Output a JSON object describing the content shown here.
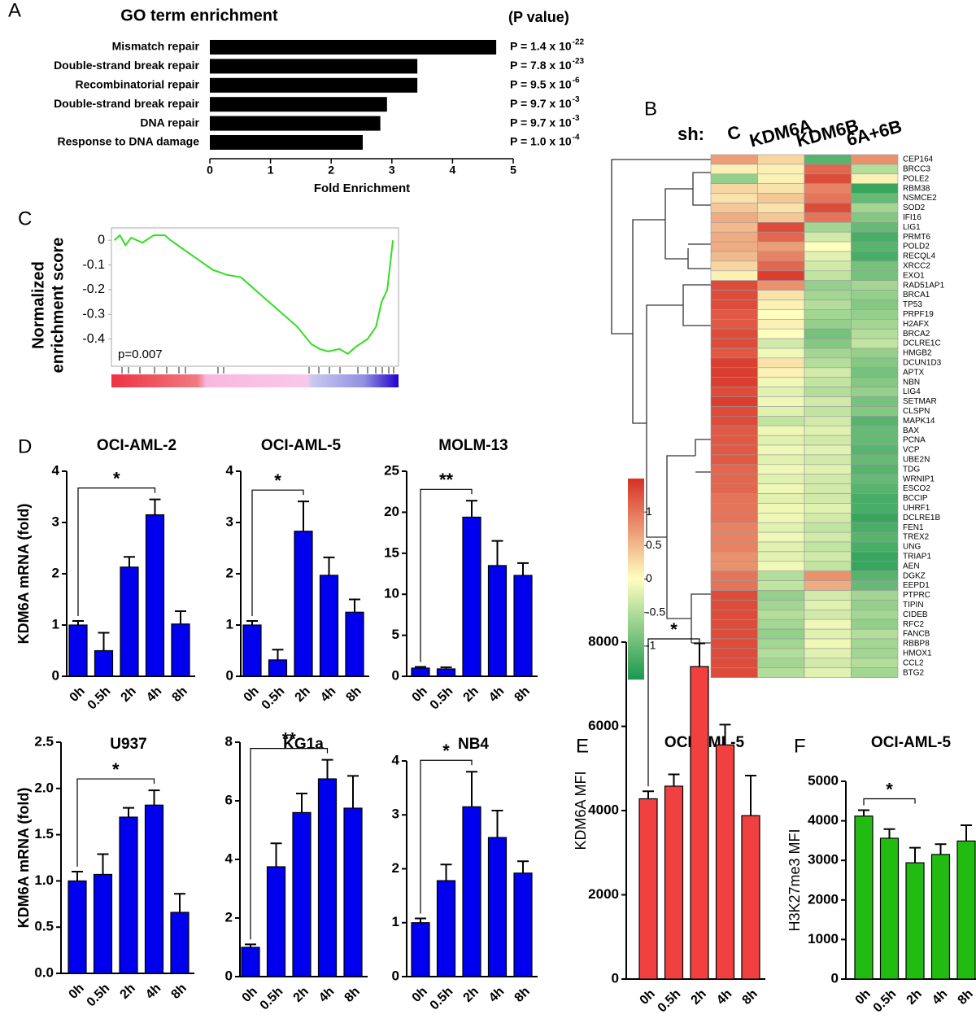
{
  "chart_data": [
    {
      "type": "barh",
      "panel": "A",
      "title": "GO term enrichment",
      "value_header": "(P value)",
      "xlabel": "Fold Enrichment",
      "categories": [
        "Mismatch repair",
        "Double-strand break repair",
        "Recombinatorial repair",
        "Double-strand break repair",
        "DNA repair",
        "Response to DNA damage"
      ],
      "values": [
        4.72,
        3.42,
        3.42,
        2.92,
        2.81,
        2.52
      ],
      "value_labels": [
        {
          "text": "P = 1.4 x 10",
          "exp": "-22"
        },
        {
          "text": "P = 7.8 x 10",
          "exp": "-23"
        },
        {
          "text": "P = 9.5 x 10",
          "exp": "-6"
        },
        {
          "text": "P = 9.7 x 10",
          "exp": "-3"
        },
        {
          "text": "P = 9.7 x 10",
          "exp": "-3"
        },
        {
          "text": "P = 1.0 x 10",
          "exp": "-4"
        }
      ],
      "color": "#000000",
      "xlim": [
        0,
        5
      ],
      "xticks": [
        0,
        1,
        2,
        3,
        4,
        5
      ]
    },
    {
      "type": "heatmap",
      "panel": "B",
      "header": "sh:",
      "columns": [
        "C",
        "KDM6A",
        "KDM6B",
        "6A+6B"
      ],
      "rows": [
        "CEP164",
        "BRCC3",
        "POLE2",
        "RBM38",
        "NSMCE2",
        "SOD2",
        "IFI16",
        "LIG1",
        "PRMT6",
        "POLD2",
        "RECQL4",
        "XRCC2",
        "EXO1",
        "RAD51AP1",
        "BRCA1",
        "TP53",
        "PRPF19",
        "H2AFX",
        "BRCA2",
        "DCLRE1C",
        "HMGB2",
        "DCUN1D3",
        "APTX",
        "NBN",
        "LIG4",
        "SETMAR",
        "CLSPN",
        "MAPK14",
        "BAX",
        "PCNA",
        "VCP",
        "UBE2N",
        "TDG",
        "WRNIP1",
        "ESCO2",
        "BCCIP",
        "UHRF1",
        "DCLRE1B",
        "FEN1",
        "TREX2",
        "UNG",
        "TRIAP1",
        "AEN",
        "DGKZ",
        "EEPD1",
        "PTPRC",
        "TIPIN",
        "CIDEB",
        "RFC2",
        "FANCB",
        "RBBP8",
        "HMOX1",
        "CCL2",
        "BTG2"
      ],
      "values": [
        [
          0.7,
          0.3,
          -1.1,
          0.8
        ],
        [
          0.1,
          0.1,
          1.1,
          -0.5
        ],
        [
          -0.7,
          0.1,
          1.3,
          0.1
        ],
        [
          0.3,
          0.2,
          0.9,
          -1.3
        ],
        [
          0.2,
          0.4,
          1.0,
          -1.0
        ],
        [
          0.4,
          0.2,
          1.3,
          -0.6
        ],
        [
          0.6,
          0.4,
          1.0,
          -0.8
        ],
        [
          0.5,
          1.3,
          -0.6,
          -1.0
        ],
        [
          0.6,
          1.1,
          -0.3,
          -1.2
        ],
        [
          0.6,
          0.7,
          0.0,
          -1.1
        ],
        [
          0.5,
          0.9,
          -0.2,
          -1.2
        ],
        [
          0.3,
          1.1,
          -0.3,
          -0.9
        ],
        [
          0.1,
          1.4,
          -0.4,
          -0.9
        ],
        [
          1.3,
          0.8,
          -0.7,
          -0.6
        ],
        [
          1.3,
          0.2,
          -0.6,
          -0.7
        ],
        [
          1.3,
          0.1,
          -0.5,
          -0.8
        ],
        [
          1.2,
          0.0,
          -0.6,
          -0.7
        ],
        [
          1.2,
          0.1,
          -0.7,
          -0.6
        ],
        [
          1.3,
          0.0,
          -0.9,
          -0.5
        ],
        [
          1.3,
          -0.3,
          -0.8,
          -0.4
        ],
        [
          1.2,
          -0.1,
          -0.6,
          -0.7
        ],
        [
          1.4,
          0.2,
          -0.5,
          -0.8
        ],
        [
          1.4,
          0.1,
          -0.3,
          -0.9
        ],
        [
          1.4,
          -0.1,
          -0.4,
          -0.8
        ],
        [
          1.3,
          -0.2,
          -0.5,
          -0.7
        ],
        [
          1.4,
          -0.1,
          -0.3,
          -0.9
        ],
        [
          1.3,
          -0.2,
          -0.4,
          -0.8
        ],
        [
          1.3,
          -0.4,
          -0.3,
          -1.1
        ],
        [
          1.2,
          -0.1,
          -0.2,
          -1.0
        ],
        [
          1.2,
          -0.2,
          -0.3,
          -1.0
        ],
        [
          1.2,
          -0.1,
          -0.2,
          -1.1
        ],
        [
          1.2,
          -0.2,
          -0.3,
          -1.0
        ],
        [
          1.1,
          -0.1,
          -0.2,
          -1.1
        ],
        [
          1.1,
          -0.2,
          -0.3,
          -1.0
        ],
        [
          1.1,
          -0.1,
          -0.3,
          -1.1
        ],
        [
          1.0,
          -0.2,
          -0.3,
          -1.2
        ],
        [
          1.0,
          -0.1,
          -0.2,
          -1.2
        ],
        [
          1.0,
          -0.1,
          -0.3,
          -1.3
        ],
        [
          0.9,
          -0.2,
          -0.4,
          -1.2
        ],
        [
          0.9,
          -0.1,
          -0.3,
          -1.1
        ],
        [
          0.9,
          -0.2,
          -0.4,
          -1.2
        ],
        [
          0.8,
          -0.2,
          -0.3,
          -1.3
        ],
        [
          0.8,
          -0.1,
          -0.4,
          -1.3
        ],
        [
          1.0,
          -0.5,
          0.8,
          -1.1
        ],
        [
          1.0,
          -0.4,
          0.6,
          -1.0
        ],
        [
          1.3,
          -0.7,
          -0.3,
          -0.6
        ],
        [
          1.3,
          -0.6,
          -0.2,
          -0.7
        ],
        [
          1.3,
          -0.5,
          -0.3,
          -0.6
        ],
        [
          1.3,
          -0.6,
          -0.1,
          -0.7
        ],
        [
          1.3,
          -0.7,
          -0.2,
          -0.5
        ],
        [
          1.3,
          -0.6,
          -0.1,
          -0.6
        ],
        [
          1.3,
          -0.5,
          -0.2,
          -0.6
        ],
        [
          1.3,
          -0.6,
          -0.3,
          -0.5
        ],
        [
          1.3,
          -0.5,
          -0.2,
          -0.6
        ]
      ],
      "clim": [
        -1.5,
        1.5
      ],
      "cticks": [
        1,
        0.5,
        0,
        -0.5,
        -1
      ]
    },
    {
      "type": "line",
      "panel": "C",
      "ylabel": [
        "Normalized",
        "enrichment score"
      ],
      "annotation": "p=0.007",
      "color": "#33dd22",
      "x": [
        0,
        2,
        4,
        6,
        10,
        14,
        18,
        20,
        35,
        40,
        45,
        55,
        65,
        70,
        73,
        76,
        80,
        83,
        86,
        90,
        93,
        95,
        97,
        98,
        99
      ],
      "values": [
        0,
        0.02,
        -0.02,
        0.01,
        -0.01,
        0.02,
        0.02,
        0,
        -0.12,
        -0.14,
        -0.15,
        -0.25,
        -0.35,
        -0.42,
        -0.44,
        -0.45,
        -0.44,
        -0.46,
        -0.43,
        -0.4,
        -0.35,
        -0.25,
        -0.2,
        -0.1,
        0
      ],
      "xlim": [
        -1,
        101
      ],
      "ylim": [
        -0.51,
        0.05
      ],
      "yticks": [
        0,
        -0.1,
        -0.2,
        -0.3,
        -0.4
      ]
    },
    {
      "type": "bar",
      "panel": "D",
      "title": "OCI-AML-2",
      "ylabel": "KDM6A mRNA (fold)",
      "categories": [
        "0h",
        "0.5h",
        "2h",
        "4h",
        "8h"
      ],
      "values": [
        1.0,
        0.5,
        2.13,
        3.15,
        1.02
      ],
      "errors": [
        0.08,
        0.35,
        0.2,
        0.3,
        0.25
      ],
      "color": "#0000ee",
      "ylim": [
        0,
        4
      ],
      "yticks": [
        0,
        1,
        2,
        3,
        4
      ],
      "significance": {
        "from": 0,
        "to": 3,
        "label": "*"
      }
    },
    {
      "type": "bar",
      "title": "OCI-AML-5",
      "categories": [
        "0h",
        "0.5h",
        "2h",
        "4h",
        "8h"
      ],
      "values": [
        1.0,
        0.32,
        2.83,
        1.97,
        1.25
      ],
      "errors": [
        0.08,
        0.2,
        0.58,
        0.35,
        0.25
      ],
      "color": "#0000ee",
      "ylim": [
        0,
        4
      ],
      "yticks": [
        0,
        1,
        2,
        3,
        4
      ],
      "significance": {
        "from": 0,
        "to": 2,
        "label": "*"
      }
    },
    {
      "type": "bar",
      "title": "MOLM-13",
      "categories": [
        "0h",
        "0.5h",
        "2h",
        "4h",
        "8h"
      ],
      "values": [
        1.0,
        0.9,
        19.4,
        13.5,
        12.3
      ],
      "errors": [
        0.15,
        0.2,
        2,
        3,
        1.5
      ],
      "color": "#0000ee",
      "ylim": [
        0,
        25
      ],
      "yticks": [
        0,
        5,
        10,
        15,
        20,
        25
      ],
      "significance": {
        "from": 0,
        "to": 2,
        "label": "**"
      }
    },
    {
      "type": "bar",
      "title": "U937",
      "ylabel": "KDM6A mRNA (fold)",
      "categories": [
        "0h",
        "0.5h",
        "2h",
        "4h",
        "8h"
      ],
      "values": [
        1.0,
        1.07,
        1.69,
        1.82,
        0.66
      ],
      "errors": [
        0.1,
        0.22,
        0.1,
        0.16,
        0.2
      ],
      "color": "#0000ee",
      "ylim": [
        0,
        2.5
      ],
      "yticks": [
        {
          "value": 0,
          "label": "0.0"
        },
        0.5,
        {
          "value": 1,
          "label": "1.0"
        },
        1.5,
        {
          "value": 2,
          "label": "2.0"
        },
        2.5
      ],
      "significance": {
        "from": 0,
        "to": 3,
        "label": "*"
      }
    },
    {
      "type": "bar",
      "title": "KG1a",
      "categories": [
        "0h",
        "0.5h",
        "2h",
        "4h",
        "8h"
      ],
      "values": [
        1.0,
        3.75,
        5.6,
        6.75,
        5.75
      ],
      "errors": [
        0.1,
        0.8,
        0.65,
        0.65,
        1.1
      ],
      "color": "#0000ee",
      "ylim": [
        0,
        8
      ],
      "yticks": [
        0,
        2,
        4,
        6,
        8
      ],
      "significance": {
        "from": 0,
        "to": 3,
        "label": "**"
      }
    },
    {
      "type": "bar",
      "title": "NB4",
      "categories": [
        "0h",
        "0.5h",
        "2h",
        "4h",
        "8h"
      ],
      "values": [
        1.0,
        1.78,
        3.15,
        2.58,
        1.92
      ],
      "errors": [
        0.08,
        0.3,
        0.65,
        0.5,
        0.22
      ],
      "color": "#0000ee",
      "ylim": [
        0,
        4
      ],
      "yticks": [
        0,
        1,
        2,
        3,
        4
      ],
      "significance": {
        "from": 0,
        "to": 2,
        "label": "*"
      }
    },
    {
      "type": "bar",
      "panel": "E",
      "title": "OCI-AML-5",
      "ylabel": "KDM6A MFI",
      "categories": [
        "0h",
        "0.5h",
        "2h",
        "4h",
        "8h"
      ],
      "values": [
        4280,
        4580,
        7420,
        5560,
        3880
      ],
      "errors": [
        180,
        280,
        550,
        480,
        950
      ],
      "color": "#f04040",
      "ylim": [
        0,
        8000
      ],
      "yticks": [
        0,
        2000,
        4000,
        6000,
        8000
      ],
      "significance": {
        "from": 0,
        "to": 2,
        "label": "*"
      }
    },
    {
      "type": "bar",
      "panel": "F",
      "title": "OCI-AML-5",
      "ylabel": "H3K27me3 MFI",
      "categories": [
        "0h",
        "0.5h",
        "2h",
        "4h",
        "8h"
      ],
      "values": [
        4120,
        3560,
        2940,
        3150,
        3490
      ],
      "errors": [
        150,
        230,
        380,
        260,
        400
      ],
      "color": "#22bb11",
      "ylim": [
        0,
        5000
      ],
      "yticks": [
        0,
        1000,
        2000,
        3000,
        4000,
        5000
      ],
      "significance": {
        "from": 0,
        "to": 2,
        "label": "*"
      }
    }
  ]
}
